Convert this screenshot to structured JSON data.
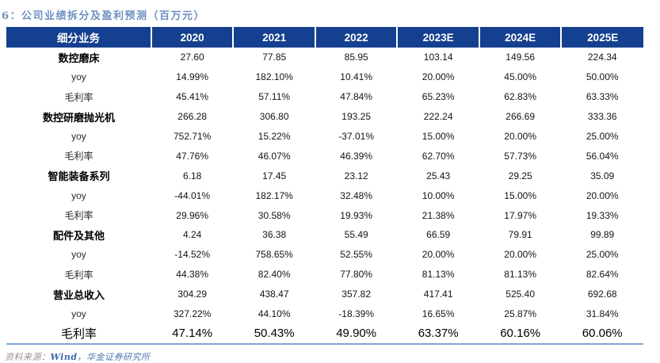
{
  "title": "6：公司业绩拆分及盈利预测（百万元）",
  "table": {
    "columns": [
      "细分业务",
      "2020",
      "2021",
      "2022",
      "2023E",
      "2024E",
      "2025E"
    ],
    "rows": [
      {
        "label": "数控磨床",
        "style": "category",
        "values": [
          "27.60",
          "77.85",
          "85.95",
          "103.14",
          "149.56",
          "224.34"
        ]
      },
      {
        "label": "yoy",
        "style": "sub",
        "values": [
          "14.99%",
          "182.10%",
          "10.41%",
          "20.00%",
          "45.00%",
          "50.00%"
        ]
      },
      {
        "label": "毛利率",
        "style": "sub",
        "values": [
          "45.41%",
          "57.11%",
          "47.84%",
          "65.23%",
          "62.83%",
          "63.33%"
        ]
      },
      {
        "label": "数控研磨抛光机",
        "style": "category",
        "values": [
          "266.28",
          "306.80",
          "193.25",
          "222.24",
          "266.69",
          "333.36"
        ]
      },
      {
        "label": "yoy",
        "style": "sub",
        "values": [
          "752.71%",
          "15.22%",
          "-37.01%",
          "15.00%",
          "20.00%",
          "25.00%"
        ]
      },
      {
        "label": "毛利率",
        "style": "sub",
        "values": [
          "47.76%",
          "46.07%",
          "46.39%",
          "62.70%",
          "57.73%",
          "56.04%"
        ]
      },
      {
        "label": "智能装备系列",
        "style": "category",
        "values": [
          "6.18",
          "17.45",
          "23.12",
          "25.43",
          "29.25",
          "35.09"
        ]
      },
      {
        "label": "yoy",
        "style": "sub",
        "values": [
          "-44.01%",
          "182.17%",
          "32.48%",
          "10.00%",
          "15.00%",
          "20.00%"
        ]
      },
      {
        "label": "毛利率",
        "style": "sub",
        "values": [
          "29.96%",
          "30.58%",
          "19.93%",
          "21.38%",
          "17.97%",
          "19.33%"
        ]
      },
      {
        "label": "配件及其他",
        "style": "category",
        "values": [
          "4.24",
          "36.38",
          "55.49",
          "66.59",
          "79.91",
          "99.89"
        ]
      },
      {
        "label": "yoy",
        "style": "sub",
        "values": [
          "-14.52%",
          "758.65%",
          "52.55%",
          "20.00%",
          "20.00%",
          "25.00%"
        ]
      },
      {
        "label": "毛利率",
        "style": "sub",
        "values": [
          "44.38%",
          "82.40%",
          "77.80%",
          "81.13%",
          "81.13%",
          "82.64%"
        ]
      },
      {
        "label": "营业总收入",
        "style": "category",
        "values": [
          "304.29",
          "438.47",
          "357.82",
          "417.41",
          "525.40",
          "692.68"
        ]
      },
      {
        "label": "yoy",
        "style": "sub",
        "values": [
          "327.22%",
          "44.10%",
          "-18.39%",
          "16.65%",
          "25.87%",
          "31.84%"
        ]
      },
      {
        "label": "毛利率",
        "style": "total-margin",
        "values": [
          "47.14%",
          "50.43%",
          "49.90%",
          "63.37%",
          "60.16%",
          "60.06%"
        ]
      }
    ]
  },
  "footer": {
    "source_prefix": "资料来源：",
    "source_wind": "Wind",
    "source_org": "，华金证券研究所"
  },
  "colors": {
    "header_bg": "#15408f",
    "title_text": "#6e90c1",
    "bottom_rule": "#7ea6d8"
  }
}
